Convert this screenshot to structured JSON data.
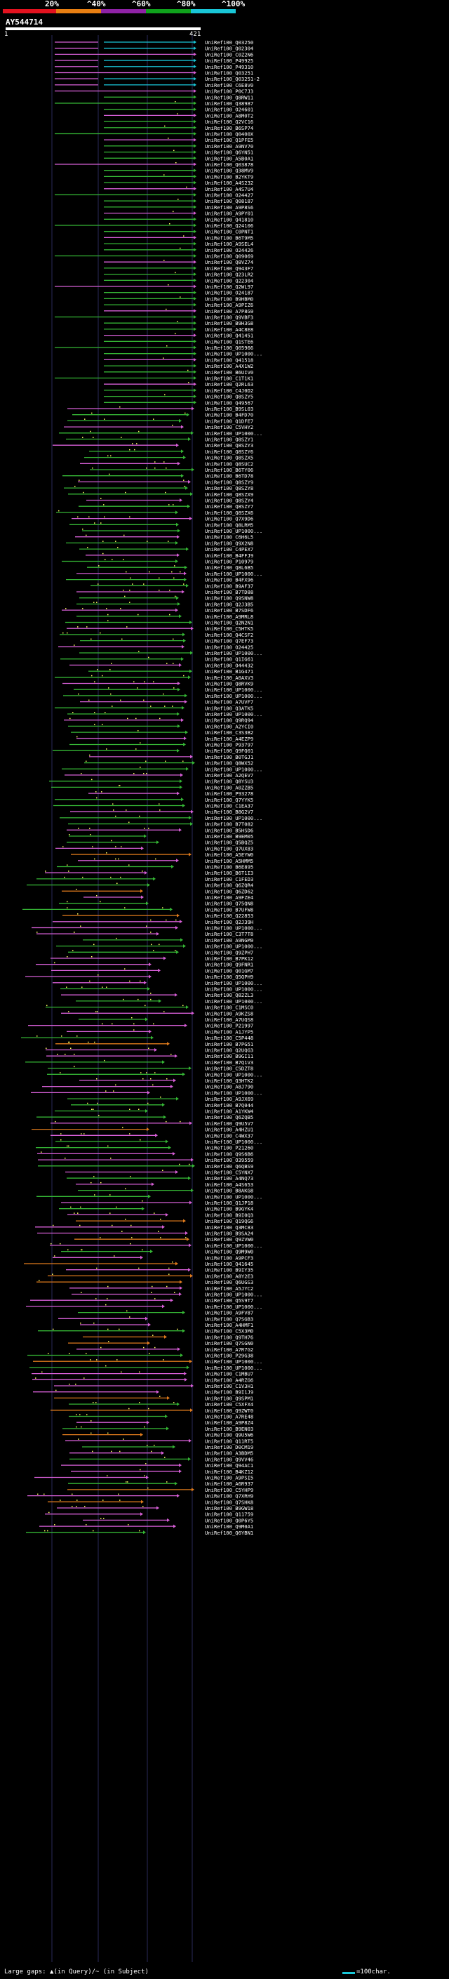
{
  "legend": {
    "labels": [
      "20%",
      "^40%",
      "^60%",
      "^80%",
      "^100%"
    ],
    "colors": [
      "#e3121f",
      "#e87f12",
      "#8f22a6",
      "#0fa21c",
      "#19c6d7"
    ]
  },
  "query": {
    "name": "AY544714",
    "start": "1",
    "end": "421"
  },
  "footer": {
    "large_gaps": "Large gaps: ▲(in Query)/~ (in Subject)",
    "scale": "=100char."
  },
  "palette": {
    "pink": "#d75fd7",
    "green": "#35b635",
    "orange": "#e07b1c",
    "cyan": "#19c6d7",
    "dot": "#ffff66"
  },
  "hits": [
    "UniRef100_Q03250",
    "UniRef100_Q02304",
    "UniRef100_C0Z2N6",
    "UniRef100_P49925",
    "UniRef100_P49310",
    "UniRef100_Q03251",
    "UniRef100_Q03251-2",
    "UniRef100_C6E8V0",
    "UniRef100_P0C7J3",
    "UniRef100_Q8RW11",
    "UniRef100_Q38987",
    "UniRef100_O24601",
    "UniRef100_A8M0T2",
    "UniRef100_Q2VC16",
    "UniRef100_B6SP74",
    "UniRef100_Q0400X",
    "UniRef100_Q1PFE5",
    "UniRef100_A9NV70",
    "UniRef100_Q6YN51",
    "UniRef100_A5B0A1",
    "UniRef100_Q03878",
    "UniRef100_Q38MV9",
    "UniRef100_B2YKT9",
    "UniRef100_A4S232",
    "UniRef100_A4S7U4",
    "UniRef100_O24427",
    "UniRef100_Q08187",
    "UniRef100_A9P8S6",
    "UniRef100_A9PY01",
    "UniRef100_Q41810",
    "UniRef100_Q24106",
    "UniRef100_C0PNT1",
    "UniRef100_B6T9M5",
    "UniRef100_A9SEL4",
    "UniRef100_O24426",
    "UniRef100_Q09069",
    "UniRef100_Q8VZ74",
    "UniRef100_Q943F7",
    "UniRef100_Q23LR2",
    "UniRef100_Q22304",
    "UniRef100_Q2WL97",
    "UniRef100_O24187",
    "UniRef100_B9HBM0",
    "UniRef100_A9PIZ6",
    "UniRef100_A7P8G9",
    "UniRef100_Q9VBF3",
    "UniRef100_B9H3G8",
    "UniRef100_A4C8E8",
    "UniRef100_Q41451",
    "UniRef100_Q1STE6",
    "UniRef100_Q05966",
    "UniRef100_UP1000...",
    "UniRef100_Q41518",
    "UniRef100_A4X1W2",
    "UniRef100_B6UIV0",
    "UniRef100_C1T1K1",
    "UniRef100_Q2RL63",
    "UniRef100_C4J0D2",
    "UniRef100_Q8SZY5",
    "UniRef100_Q49567",
    "UniRef100_B9SL03",
    "UniRef100_B4FD70",
    "UniRef100_Q1DFE7",
    "UniRef100_C5VHY2",
    "UniRef100_UP1000...",
    "UniRef100_Q8SZY1",
    "UniRef100_Q8SZY3",
    "UniRef100_Q8SZY6",
    "UniRef100_Q8SZX5",
    "UniRef100_Q8SUC2",
    "UniRef100_B6TY06",
    "UniRef100_B6TD78",
    "UniRef100_Q8SZY9",
    "UniRef100_Q8SZY8",
    "UniRef100_Q8SZX9",
    "UniRef100_Q8SZY4",
    "UniRef100_Q8SZY7",
    "UniRef100_Q8SZX6",
    "UniRef100_Q7X9D6",
    "UniRef100_Q8LRM5",
    "UniRef100_UP1000...",
    "UniRef100_C6H6L5",
    "UniRef100_Q9X2N8",
    "UniRef100_C4PEX7",
    "UniRef100_B4FFJ9",
    "UniRef100_P10979",
    "UniRef100_Q8L6B5",
    "UniRef100_UP1000...",
    "UniRef100_B4FX96",
    "UniRef100_B9AF37",
    "UniRef100_B7TD88",
    "UniRef100_Q9SNW8",
    "UniRef100_Q2J3B5",
    "UniRef100_B7SDF6",
    "UniRef100_A9MRL8",
    "UniRef100_Q2N2N1",
    "UniRef100_C5HTK5",
    "UniRef100_Q4CSF2",
    "UniRef100_Q7EF73",
    "UniRef100_O24425",
    "UniRef100_UP1000...",
    "UniRef100_Q1IG61",
    "UniRef100_O44432",
    "UniRef100_B1G471",
    "UniRef100_A0AXV3",
    "UniRef100_Q8RVK9",
    "UniRef100_UP1000...",
    "UniRef100_UP1000...",
    "UniRef100_A7UVF7",
    "UniRef100_Q3ATK5",
    "UniRef100_UP1000...",
    "UniRef100_Q9RQ94",
    "UniRef100_A2YCI0",
    "UniRef100_C3S3B2",
    "UniRef100_A4EZP9",
    "UniRef100_P93797",
    "UniRef100_Q9FQ01",
    "UniRef100_B0TGJ1",
    "UniRef100_Q8WX52",
    "UniRef100_UP1000...",
    "UniRef100_A2QEV7",
    "UniRef100_Q8YSU3",
    "UniRef100_A0ZZB5",
    "UniRef100_P93278",
    "UniRef100_Q7YYK5",
    "UniRef100_C1EA37",
    "UniRef100_B8G2V7",
    "UniRef100_UP1000...",
    "UniRef100_B7T082",
    "UniRef100_B5HSD6",
    "UniRef100_B9EM05",
    "UniRef100_Q5BQZ5",
    "UniRef100_Q7UX83",
    "UniRef100_A5EYW0",
    "UniRef100_A5HMM5",
    "UniRef100_B6E895",
    "UniRef100_B6T1I3",
    "UniRef100_C1FED3",
    "UniRef100_Q6ZQR4",
    "UniRef100_Q6ZD62",
    "UniRef100_A9FZE4",
    "UniRef100_Q75QN8",
    "UniRef100_B7UFW8",
    "UniRef100_Q22853",
    "UniRef100_Q2J39H",
    "UniRef100_UP1000...",
    "UniRef100_C3T7T8",
    "UniRef100_A9NGM9",
    "UniRef100_UP1000...",
    "UniRef100_Q9ZPH7",
    "UniRef100_B7PK12",
    "UniRef100_Q9FNR1",
    "UniRef100_Q01GM7",
    "UniRef100_Q5QPH9",
    "UniRef100_UP1000...",
    "UniRef100_UP1000...",
    "UniRef100_Q82ZL3",
    "UniRef100_UP1000...",
    "UniRef100_C1MSC0",
    "UniRef100_A9KZS8",
    "UniRef100_A7UQS8",
    "UniRef100_P21997",
    "UniRef100_A1JYP5",
    "UniRef100_C5P448",
    "UniRef100_B7PG51",
    "UniRef100_Q2UQG3",
    "UniRef100_B9GI11",
    "UniRef100_B7Q1V3",
    "UniRef100_C5DZT8",
    "UniRef100_UP1000...",
    "UniRef100_Q3HTK2",
    "UniRef100_A8J790",
    "UniRef100_UP1000...",
    "UniRef100_A9JX69",
    "UniRef100_B7Q044",
    "UniRef100_A1YKW4",
    "UniRef100_Q6ZQB5",
    "UniRef100_Q9U5V7",
    "UniRef100_A4HZU1",
    "UniRef100_C4WX37",
    "UniRef100_UP1000...",
    "UniRef100_P21260",
    "UniRef100_Q9S6B6",
    "UniRef100_O39559",
    "UniRef100_Q6QBS9",
    "UniRef100_C5YNX7",
    "UniRef100_A4NQ73",
    "UniRef100_A4S653",
    "UniRef100_B8AKG8",
    "UniRef100_UP1000...",
    "UniRef100_Q1JP18",
    "UniRef100_B9GYK4",
    "UniRef100_B9I0Q3",
    "UniRef100_Q19QG6",
    "UniRef100_Q3MC83",
    "UniRef100_B9SA24",
    "UniRef100_Q9ZVW0",
    "UniRef100_UP1000...",
    "UniRef100_Q9M9W0",
    "UniRef100_A9PCF3",
    "UniRef100_Q41645",
    "UniRef100_B9IY35",
    "UniRef100_A8Y2E3",
    "UniRef100_Q6UGS3",
    "UniRef100_A5JYC2",
    "UniRef100_UP1000...",
    "UniRef100_Q5S9T7",
    "UniRef100_UP1000...",
    "UniRef100_A9FV87",
    "UniRef100_Q7SGB3",
    "UniRef100_A4HMF1",
    "UniRef100_C5X3M0",
    "UniRef100_Q9TH76",
    "UniRef100_Q7SGN0",
    "UniRef100_A7R7G2",
    "UniRef100_P29G38",
    "UniRef100_UP1000...",
    "UniRef100_UP1000...",
    "UniRef100_C1MBU7",
    "UniRef100_A4RZG6",
    "UniRef100_C1V3H1",
    "UniRef100_B9I1J9",
    "UniRef100_Q9SPM1",
    "UniRef100_C5XFX4",
    "UniRef100_Q9ZWT0",
    "UniRef100_A7RE48",
    "UniRef100_A9P8Z4",
    "UniRef100_B9EN03",
    "UniRef100_Q9U5W6",
    "UniRef100_Q11RT5",
    "UniRef100_D0CM19",
    "UniRef100_A3BDM5",
    "UniRef100_Q9VV46",
    "UniRef100_Q94AC1",
    "UniRef100_B4KZ12",
    "UniRef100_A9PSI5",
    "UniRef100_A6R937",
    "UniRef100_C5YHP9",
    "UniRef100_Q7XRH9",
    "UniRef100_Q7SHK8",
    "UniRef100_B9GW18",
    "UniRef100_Q11759",
    "UniRef100_Q0P6Y5",
    "UniRef100_Q9M0A1",
    "UniRef100_Q6YBN1"
  ]
}
